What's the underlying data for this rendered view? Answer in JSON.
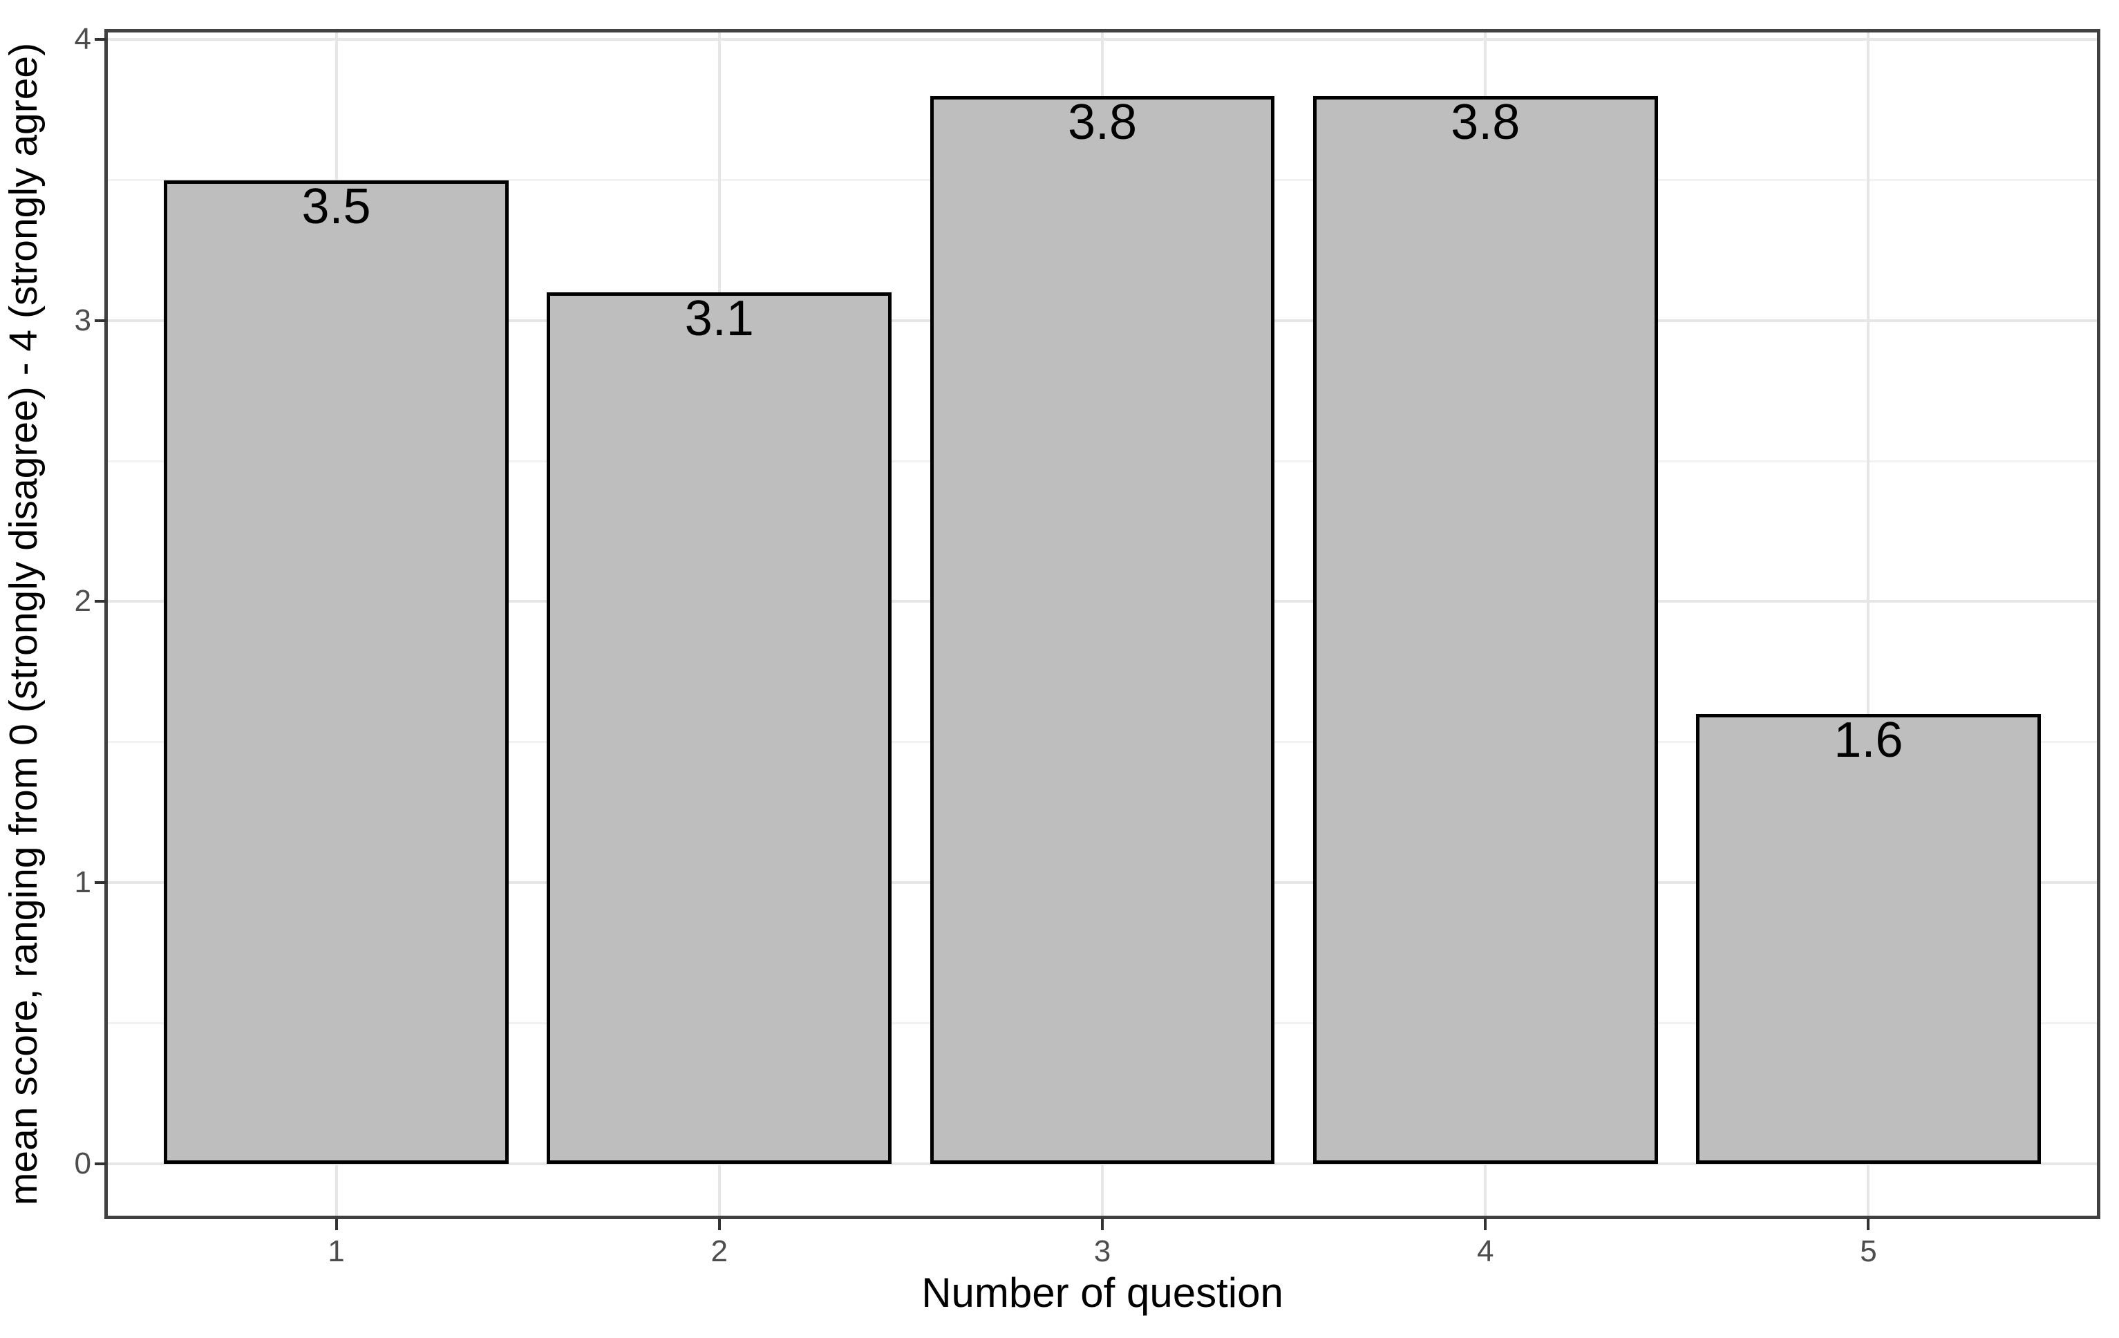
{
  "chart_data": {
    "type": "bar",
    "title": "",
    "xlabel": "Number of question",
    "ylabel": "mean score, ranging from 0 (strongly disagree) - 4 (strongly agree)",
    "categories": [
      "1",
      "2",
      "3",
      "4",
      "5"
    ],
    "values": [
      3.5,
      3.1,
      3.8,
      3.8,
      1.6
    ],
    "bar_labels": [
      "3.5",
      "3.1",
      "3.8",
      "3.8",
      "1.6"
    ],
    "ylim": [
      -0.19,
      4.03
    ],
    "yticks": [
      0,
      1,
      2,
      3,
      4
    ],
    "yticks_minor": [
      0.5,
      1.5,
      2.5,
      3.5
    ],
    "bar_width_fraction": 0.9,
    "grid": true,
    "legend": "none",
    "colors": {
      "bar_fill": "#bebebe",
      "bar_outline": "#000000",
      "panel_border": "#404040",
      "grid_major": "#e6e6e6",
      "grid_minor": "#f2f2f2",
      "tick_mark": "#333333",
      "tick_label": "#4d4d4d",
      "axis_title": "#000000",
      "background": "#ffffff"
    }
  }
}
